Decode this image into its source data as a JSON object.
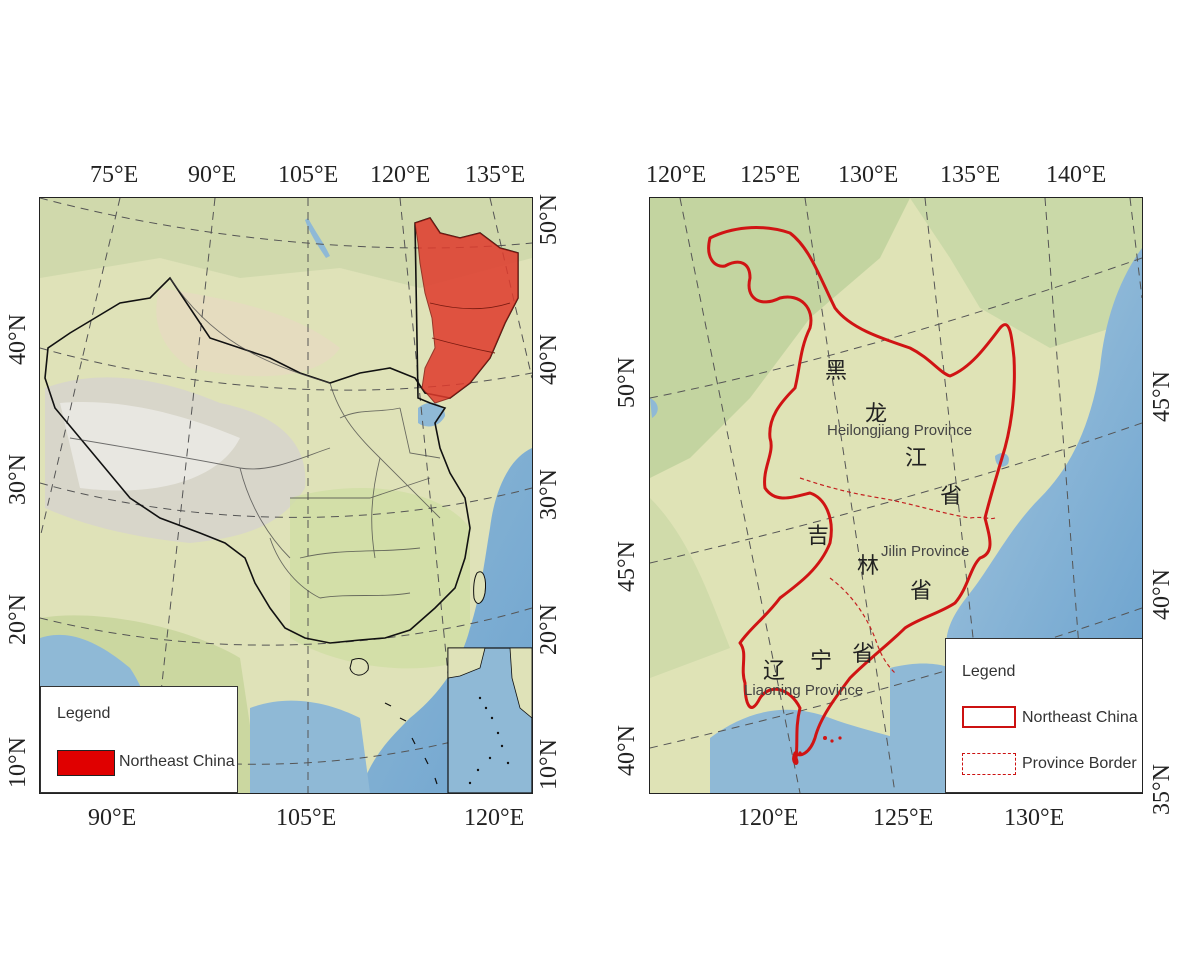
{
  "left_map": {
    "top_ticks": [
      "75°E",
      "90°E",
      "105°E",
      "120°E",
      "135°E"
    ],
    "bottom_ticks": [
      "90°E",
      "105°E",
      "120°E"
    ],
    "left_ticks": [
      "40°N",
      "30°N",
      "20°N",
      "10°N"
    ],
    "right_ticks": [
      "50°N",
      "40°N",
      "30°N",
      "20°N",
      "10°N"
    ],
    "legend": {
      "title": "Legend",
      "item_label": "Northeast China",
      "item_color": "#e00000"
    }
  },
  "right_map": {
    "top_ticks": [
      "120°E",
      "125°E",
      "130°E",
      "135°E",
      "140°E"
    ],
    "bottom_ticks": [
      "120°E",
      "125°E",
      "130°E"
    ],
    "left_ticks": [
      "50°N",
      "45°N",
      "40°N"
    ],
    "right_ticks": [
      "45°N",
      "40°N",
      "35°N"
    ],
    "labels": {
      "heilongjiang_cn": [
        "黑",
        "龙",
        "江",
        "省"
      ],
      "heilongjiang_en": "Heilongjiang Province",
      "jilin_cn": [
        "吉",
        "林",
        "省"
      ],
      "jilin_en": "Jilin Province",
      "liaoning_cn": [
        "辽",
        "宁",
        "省"
      ],
      "liaoning_en": "Liaoning Province"
    },
    "legend": {
      "title": "Legend",
      "item1_label": "Northeast China",
      "item2_label": "Province Border",
      "border_color": "#cc1111"
    }
  }
}
